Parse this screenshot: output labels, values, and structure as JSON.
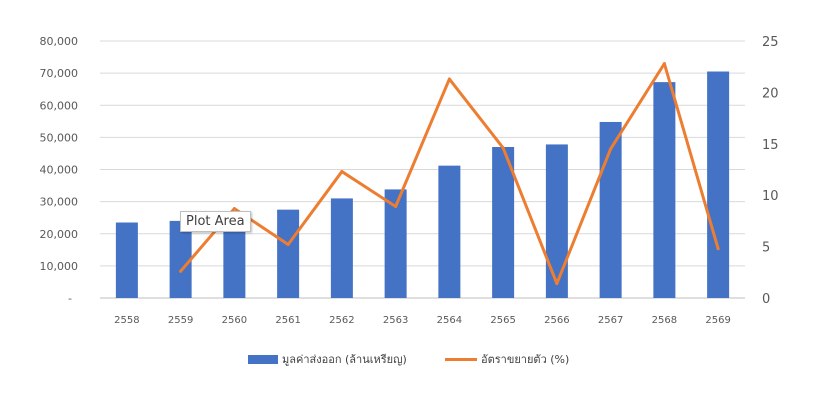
{
  "chart_data": {
    "type": "bar",
    "categories": [
      "2558",
      "2559",
      "2560",
      "2561",
      "2562",
      "2563",
      "2564",
      "2565",
      "2566",
      "2567",
      "2568",
      "2569"
    ],
    "series": [
      {
        "name": "มูลค่าส่งออก (ล้านเหรียญ)",
        "type": "bar",
        "axis": "left",
        "color": "#4472C4",
        "values": [
          23500,
          24000,
          26000,
          27500,
          31000,
          33800,
          41200,
          47000,
          47800,
          54800,
          67200,
          70500
        ]
      },
      {
        "name": "อัตราขยายตัว (%)",
        "type": "line",
        "axis": "right",
        "color": "#ED7D31",
        "values": [
          null,
          2.6,
          8.7,
          5.2,
          12.3,
          8.9,
          21.3,
          14.6,
          1.4,
          14.5,
          22.8,
          4.8
        ]
      }
    ],
    "y_left": {
      "ylim": [
        0,
        80000
      ],
      "ticks": [
        {
          "v": 0,
          "label": "-"
        },
        {
          "v": 10000,
          "label": "10,000"
        },
        {
          "v": 20000,
          "label": "20,000"
        },
        {
          "v": 30000,
          "label": "30,000"
        },
        {
          "v": 40000,
          "label": "40,000"
        },
        {
          "v": 50000,
          "label": "50,000"
        },
        {
          "v": 60000,
          "label": "60,000"
        },
        {
          "v": 70000,
          "label": "70,000"
        },
        {
          "v": 80000,
          "label": "80,000"
        }
      ]
    },
    "y_right": {
      "ylim": [
        0,
        25
      ],
      "ticks": [
        {
          "v": 0,
          "label": "0"
        },
        {
          "v": 5,
          "label": "5"
        },
        {
          "v": 10,
          "label": "10"
        },
        {
          "v": 15,
          "label": "15"
        },
        {
          "v": 20,
          "label": "20"
        },
        {
          "v": 25,
          "label": "25"
        }
      ]
    },
    "grid": true,
    "legend": "bottom",
    "gridColor": "#d9d9d9"
  },
  "tooltip": {
    "label": "Plot Area"
  }
}
